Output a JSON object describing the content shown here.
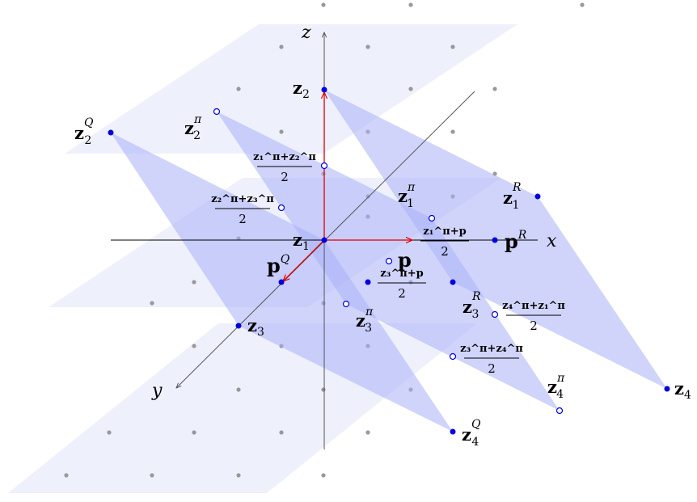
{
  "axes": {
    "x": "x",
    "y": "y",
    "z": "z"
  },
  "points": {
    "z1": {
      "base": "z",
      "sub": "1",
      "sup": ""
    },
    "z2": {
      "base": "z",
      "sub": "2",
      "sup": ""
    },
    "z3": {
      "base": "z",
      "sub": "3",
      "sup": ""
    },
    "z4": {
      "base": "z",
      "sub": "4",
      "sup": ""
    },
    "p": {
      "base": "p",
      "sub": "",
      "sup": ""
    },
    "pQ": {
      "base": "p",
      "sub": "",
      "sup": "Q"
    },
    "pR": {
      "base": "p",
      "sub": "",
      "sup": "R"
    },
    "z2Q": {
      "base": "z",
      "sub": "2",
      "sup": "Q"
    },
    "z4Q": {
      "base": "z",
      "sub": "4",
      "sup": "Q"
    },
    "z1R": {
      "base": "z",
      "sub": "1",
      "sup": "R"
    },
    "z3R": {
      "base": "z",
      "sub": "3",
      "sup": "R"
    },
    "z1pi": {
      "base": "z",
      "sub": "1",
      "sup": "π"
    },
    "z2pi": {
      "base": "z",
      "sub": "2",
      "sup": "π"
    },
    "z3pi": {
      "base": "z",
      "sub": "3",
      "sup": "π"
    },
    "z4pi": {
      "base": "z",
      "sub": "4",
      "sup": "π"
    }
  },
  "fractions": {
    "m12": {
      "num": "z₁^π+z₂^π",
      "den": "2"
    },
    "m23": {
      "num": "z₂^π+z₃^π",
      "den": "2"
    },
    "m1p": {
      "num": "z₁^π+p",
      "den": "2"
    },
    "m3p": {
      "num": "z₃^π+p",
      "den": "2"
    },
    "m41": {
      "num": "z₄^π+z₁^π",
      "den": "2"
    },
    "m34": {
      "num": "z₃^π+z₄^π",
      "den": "2"
    }
  },
  "colors": {
    "plane_fill": "#aab0f7",
    "grid_plane": "#eef0fc",
    "filled_point": "#0000e0",
    "open_point": "#0000e0",
    "vector": "#e00000",
    "axis": "#000000",
    "grid_dot": "#999999"
  }
}
